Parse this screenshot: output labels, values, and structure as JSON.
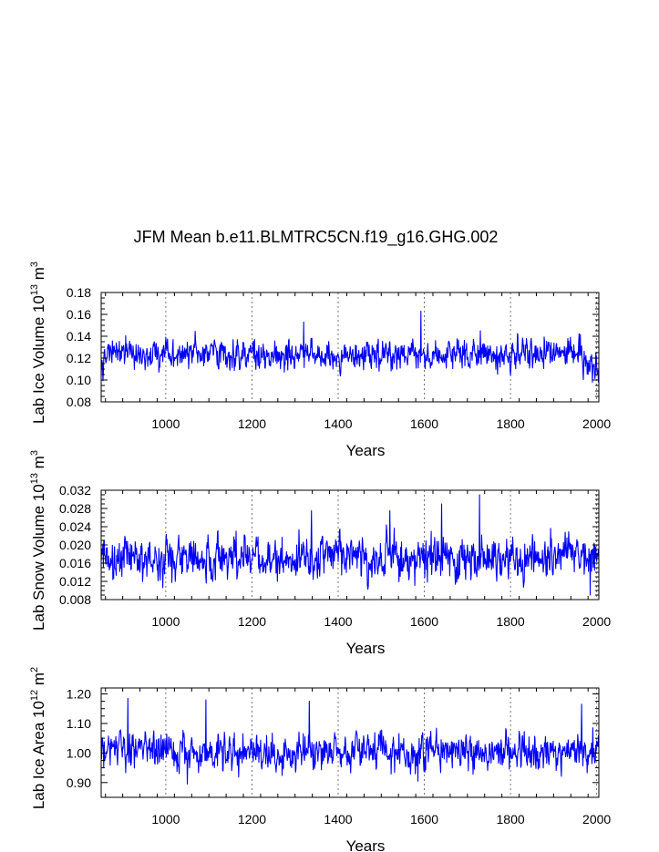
{
  "title": "JFM Mean b.e11.BLMTRC5CN.f19_g16.GHG.002",
  "colors": {
    "series": "#0000ff",
    "axis": "#000000",
    "grid": "#555555"
  },
  "chart_data": [
    {
      "type": "line",
      "name": "ice-volume",
      "xlabel": "Years",
      "ylabel": "Lab Ice Volume 10",
      "ylabel_exp": "13",
      "ylabel_unit": "m",
      "ylabel_unit_exp": "3",
      "xlim": [
        850,
        2005
      ],
      "ylim": [
        0.08,
        0.18
      ],
      "xticks": [
        1000,
        1200,
        1400,
        1600,
        1800,
        2000
      ],
      "xtick_labels": [
        "1000",
        "1200",
        "1400",
        "1600",
        "1800",
        "2000"
      ],
      "yticks": [
        0.08,
        0.1,
        0.12,
        0.14,
        0.16,
        0.18
      ],
      "ytick_labels": [
        "0.08",
        "0.10",
        "0.12",
        "0.14",
        "0.16",
        "0.18"
      ],
      "grid": "vertical-dashed",
      "series": [
        {
          "name": "Lab Ice Volume",
          "mean": 0.123,
          "std": 0.0095,
          "features": [
            [
              1592,
              0.163
            ],
            [
              1320,
              0.153
            ],
            [
              1730,
              0.145
            ],
            [
              1990,
              0.098
            ],
            [
              2000,
              0.113
            ]
          ]
        }
      ]
    },
    {
      "type": "line",
      "name": "snow-volume",
      "xlabel": "Years",
      "ylabel": "Lab Snow Volume 10",
      "ylabel_exp": "13",
      "ylabel_unit": "m",
      "ylabel_unit_exp": "3",
      "xlim": [
        850,
        2005
      ],
      "ylim": [
        0.008,
        0.032
      ],
      "xticks": [
        1000,
        1200,
        1400,
        1600,
        1800,
        2000
      ],
      "xtick_labels": [
        "1000",
        "1200",
        "1400",
        "1600",
        "1800",
        "2000"
      ],
      "yticks": [
        0.008,
        0.012,
        0.016,
        0.02,
        0.024,
        0.028,
        0.032
      ],
      "ytick_labels": [
        "0.008",
        "0.012",
        "0.016",
        "0.020",
        "0.024",
        "0.028",
        "0.032"
      ],
      "grid": "vertical-dashed",
      "series": [
        {
          "name": "Lab Snow Volume",
          "mean": 0.0172,
          "std": 0.0032,
          "features": [
            [
              1728,
              0.031
            ],
            [
              1640,
              0.029
            ],
            [
              1338,
              0.0275
            ],
            [
              1520,
              0.0275
            ],
            [
              1985,
              0.009
            ]
          ]
        }
      ]
    },
    {
      "type": "line",
      "name": "ice-area",
      "xlabel": "Years",
      "ylabel": "Lab Ice Area 10",
      "ylabel_exp": "12",
      "ylabel_unit": "m",
      "ylabel_unit_exp": "2",
      "xlim": [
        850,
        2005
      ],
      "ylim": [
        0.85,
        1.22
      ],
      "xticks": [
        1000,
        1200,
        1400,
        1600,
        1800,
        2000
      ],
      "xtick_labels": [
        "1000",
        "1200",
        "1400",
        "1600",
        "1800",
        "2000"
      ],
      "yticks": [
        0.9,
        1.0,
        1.1,
        1.2
      ],
      "ytick_labels": [
        "0.90",
        "1.00",
        "1.10",
        "1.20"
      ],
      "grid": "vertical-dashed",
      "series": [
        {
          "name": "Lab Ice Area",
          "mean": 1.005,
          "std": 0.043,
          "features": [
            [
              912,
              1.185
            ],
            [
              1093,
              1.18
            ],
            [
              1333,
              1.175
            ],
            [
              1965,
              1.165
            ],
            [
              1050,
              0.895
            ],
            [
              1585,
              0.905
            ]
          ]
        }
      ]
    }
  ]
}
